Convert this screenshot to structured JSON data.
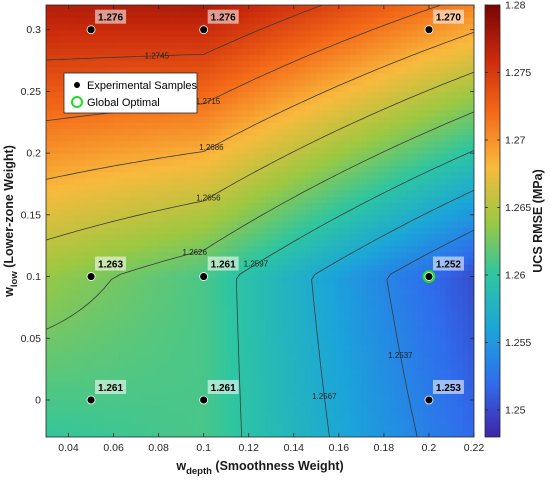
{
  "chart_data": {
    "type": "heatmap",
    "subtype": "filled contour",
    "xlabel": {
      "main": "w",
      "sub": "depth",
      "rest": " (Smoothness Weight)"
    },
    "ylabel": {
      "main": "w",
      "sub": "low",
      "rest": " (Lower-zone Weight)"
    },
    "xlim": [
      0.03,
      0.22
    ],
    "ylim": [
      -0.03,
      0.32
    ],
    "xticks": [
      "0.04",
      "0.06",
      "0.08",
      "0.1",
      "0.12",
      "0.14",
      "0.16",
      "0.18",
      "0.2",
      "0.22"
    ],
    "yticks": [
      "0",
      "0.05",
      "0.1",
      "0.15",
      "0.2",
      "0.25",
      "0.3"
    ],
    "colorbar": {
      "label": "UCS RMSE (MPa)",
      "range": [
        1.248,
        1.28
      ],
      "ticks": [
        "1.25",
        "1.255",
        "1.26",
        "1.265",
        "1.27",
        "1.275",
        "1.28"
      ],
      "colormap": [
        "#3e26a8",
        "#2f6ded",
        "#1ba5d9",
        "#2ec6a0",
        "#9dc841",
        "#f8ba3d",
        "#f46a18",
        "#ca2a0c",
        "#7a0403"
      ]
    },
    "samples": [
      {
        "x": 0.05,
        "y": 0.3,
        "value": "1.276"
      },
      {
        "x": 0.1,
        "y": 0.3,
        "value": "1.276"
      },
      {
        "x": 0.2,
        "y": 0.3,
        "value": "1.270"
      },
      {
        "x": 0.05,
        "y": 0.1,
        "value": "1.263"
      },
      {
        "x": 0.1,
        "y": 0.1,
        "value": "1.261"
      },
      {
        "x": 0.2,
        "y": 0.1,
        "value": "1.252"
      },
      {
        "x": 0.05,
        "y": 0.0,
        "value": "1.261"
      },
      {
        "x": 0.1,
        "y": 0.0,
        "value": "1.261"
      },
      {
        "x": 0.2,
        "y": 0.0,
        "value": "1.253"
      }
    ],
    "optimal": {
      "x": 0.2,
      "y": 0.1,
      "value": "1.252"
    },
    "contour_levels": [
      "1.2537",
      "1.2567",
      "1.2597",
      "1.2626",
      "1.2656",
      "1.2686",
      "1.2715",
      "1.2745"
    ],
    "legend": {
      "placement": "upper-left",
      "entries": [
        "Experimental Samples",
        "Global Optimal"
      ]
    },
    "colors": {
      "sample_marker": "#000000",
      "optimal_ring": "#22dd22",
      "contour_line": "#3a3a3a"
    }
  }
}
